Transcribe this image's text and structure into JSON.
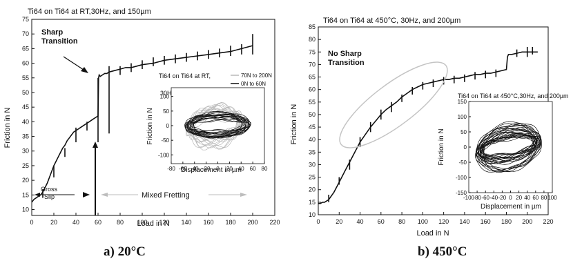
{
  "panels": [
    {
      "caption": "a) 20°C",
      "chart_data": {
        "type": "line",
        "title": "Ti64 on Ti64 at RT,30Hz, and 150µm",
        "xlabel": "Load in N",
        "ylabel": "Friction in N",
        "xlim": [
          0,
          220
        ],
        "ylim": [
          8,
          75
        ],
        "xticks": [
          0,
          20,
          40,
          60,
          80,
          100,
          120,
          140,
          160,
          180,
          200,
          220
        ],
        "yticks": [
          10,
          15,
          20,
          25,
          30,
          35,
          40,
          45,
          50,
          55,
          60,
          65,
          70,
          75
        ],
        "series": [
          {
            "x": [
              0,
              1,
              2,
              4,
              6,
              8,
              10,
              12,
              14,
              16,
              18,
              20,
              22,
              24,
              26,
              28,
              30,
              32,
              34,
              36,
              38,
              40,
              42,
              44,
              46,
              48,
              50,
              52,
              54,
              56,
              58,
              60,
              60.5,
              61,
              62,
              64,
              66,
              68,
              70,
              75,
              80,
              85,
              90,
              95,
              100,
              110,
              120,
              130,
              140,
              150,
              160,
              170,
              180,
              190,
              200
            ],
            "y": [
              12.5,
              13,
              13.5,
              14,
              14.5,
              15,
              16,
              17.5,
              19,
              21,
              23,
              25,
              26.5,
              28,
              29.5,
              31,
              32,
              33.5,
              34.5,
              35.5,
              36.5,
              37,
              37.5,
              38,
              38.5,
              39,
              39.5,
              40,
              40.5,
              41,
              41.5,
              42,
              55,
              56,
              55.5,
              56,
              56.5,
              56.5,
              57,
              57.5,
              58,
              58.5,
              58.5,
              59,
              59.5,
              60,
              61,
              61.5,
              62,
              62.5,
              63,
              63.5,
              64,
              65,
              66
            ]
          }
        ],
        "spikes": [
          {
            "x": 10,
            "low": 14,
            "high": 17
          },
          {
            "x": 20,
            "low": 21,
            "high": 25
          },
          {
            "x": 30,
            "low": 28,
            "high": 31
          },
          {
            "x": 40,
            "low": 33,
            "high": 38
          },
          {
            "x": 50,
            "low": 37,
            "high": 40
          },
          {
            "x": 60,
            "low": 33,
            "high": 55
          },
          {
            "x": 70,
            "low": 36,
            "high": 59
          },
          {
            "x": 80,
            "low": 56,
            "high": 59
          },
          {
            "x": 90,
            "low": 57,
            "high": 60
          },
          {
            "x": 100,
            "low": 58,
            "high": 61
          },
          {
            "x": 110,
            "low": 59,
            "high": 62
          },
          {
            "x": 120,
            "low": 59.5,
            "high": 62.5
          },
          {
            "x": 130,
            "low": 60,
            "high": 63
          },
          {
            "x": 140,
            "low": 60.5,
            "high": 63.5
          },
          {
            "x": 150,
            "low": 61,
            "high": 64
          },
          {
            "x": 160,
            "low": 61.5,
            "high": 64.5
          },
          {
            "x": 170,
            "low": 62,
            "high": 65
          },
          {
            "x": 180,
            "low": 62.5,
            "high": 66
          },
          {
            "x": 190,
            "low": 63,
            "high": 66.5
          },
          {
            "x": 200,
            "low": 63,
            "high": 70
          }
        ],
        "annotations": {
          "sharp_transition": "Sharp Transition",
          "gross_slip": "Gross Slip",
          "mixed_fretting": "Mixed Fretting"
        },
        "inset": {
          "title_line1": "Ti64 on Ti64 at RT,",
          "title_line2": "30Hz, and 150µm",
          "xlabel": "Displacement in µm",
          "ylabel": "Friction in N",
          "xlim": [
            -80,
            80
          ],
          "ylim": [
            -130,
            130
          ],
          "xticks": [
            -80,
            -60,
            -40,
            -20,
            0,
            20,
            40,
            60,
            80
          ],
          "yticks": [
            -100,
            -50,
            0,
            50,
            100
          ],
          "legend": [
            {
              "label": "70N to 200N",
              "color": "#b8b8b8"
            },
            {
              "label": "0N to 60N",
              "color": "#111111"
            }
          ]
        }
      }
    },
    {
      "caption": "b) 450°C",
      "chart_data": {
        "type": "line",
        "title": "Ti64 on Ti64 at 450°C, 30Hz, and 200µm",
        "xlabel": "Load in N",
        "ylabel": "Friction in N",
        "xlim": [
          0,
          220
        ],
        "ylim": [
          10,
          85
        ],
        "xticks": [
          0,
          20,
          40,
          60,
          80,
          100,
          120,
          140,
          160,
          180,
          200,
          220
        ],
        "yticks": [
          10,
          15,
          20,
          25,
          30,
          35,
          40,
          45,
          50,
          55,
          60,
          65,
          70,
          75,
          80,
          85
        ],
        "series": [
          {
            "x": [
              0,
              2,
              4,
              6,
              8,
              10,
              15,
              20,
              25,
              30,
              35,
              40,
              45,
              50,
              55,
              60,
              65,
              70,
              75,
              80,
              85,
              90,
              95,
              100,
              105,
              110,
              115,
              120,
              125,
              130,
              135,
              140,
              145,
              150,
              155,
              160,
              165,
              170,
              175,
              180,
              181,
              182,
              185,
              190,
              195,
              200,
              205,
              210
            ],
            "y": [
              14.5,
              14.5,
              15,
              15,
              15.5,
              16,
              19,
              23,
              27,
              31,
              35,
              39,
              42,
              45,
              47.5,
              50,
              52,
              53.5,
              55,
              57,
              58.5,
              60,
              61,
              62,
              62.5,
              63,
              63.5,
              64,
              64,
              64.5,
              64.5,
              65,
              65.5,
              66,
              66,
              66.5,
              66.5,
              67,
              67.5,
              68,
              73,
              74,
              74,
              74.5,
              75,
              75,
              75,
              75
            ]
          }
        ],
        "spikes": [
          {
            "x": 10,
            "low": 15,
            "high": 18
          },
          {
            "x": 20,
            "low": 22,
            "high": 25
          },
          {
            "x": 30,
            "low": 28,
            "high": 32
          },
          {
            "x": 40,
            "low": 37,
            "high": 41
          },
          {
            "x": 50,
            "low": 43,
            "high": 47
          },
          {
            "x": 60,
            "low": 48,
            "high": 52
          },
          {
            "x": 70,
            "low": 51,
            "high": 55
          },
          {
            "x": 80,
            "low": 55,
            "high": 58
          },
          {
            "x": 90,
            "low": 58,
            "high": 61
          },
          {
            "x": 100,
            "low": 60,
            "high": 63
          },
          {
            "x": 110,
            "low": 61,
            "high": 64
          },
          {
            "x": 120,
            "low": 62,
            "high": 65
          },
          {
            "x": 130,
            "low": 62.5,
            "high": 65.5
          },
          {
            "x": 140,
            "low": 63,
            "high": 66
          },
          {
            "x": 150,
            "low": 64,
            "high": 67
          },
          {
            "x": 160,
            "low": 64.5,
            "high": 67.5
          },
          {
            "x": 170,
            "low": 65,
            "high": 68
          },
          {
            "x": 190,
            "low": 73,
            "high": 76
          },
          {
            "x": 200,
            "low": 73,
            "high": 77
          },
          {
            "x": 205,
            "low": 74,
            "high": 77
          }
        ],
        "annotations": {
          "no_sharp_transition": "No Sharp Transition"
        },
        "inset": {
          "title": "Ti64 on Ti64 at 450°C,30Hz, and 200µm",
          "xlabel": "Displacement in µm",
          "ylabel": "Friction in N",
          "xlim": [
            -100,
            100
          ],
          "ylim": [
            -150,
            150
          ],
          "xticks": [
            -100,
            -80,
            -60,
            -40,
            -20,
            0,
            20,
            40,
            60,
            80,
            100
          ],
          "yticks": [
            -150,
            -100,
            -50,
            0,
            50,
            100,
            150
          ]
        }
      }
    }
  ]
}
